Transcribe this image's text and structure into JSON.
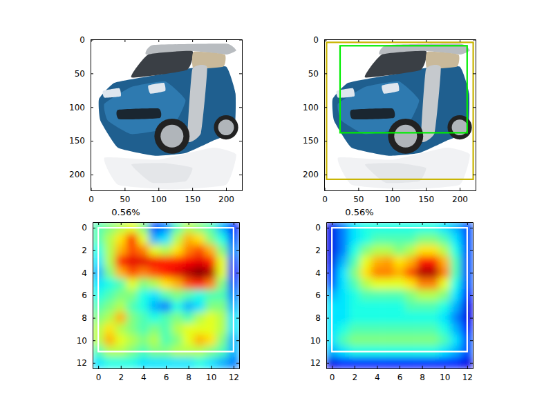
{
  "chart_data": [
    {
      "type": "image",
      "xlim": [
        -0.5,
        223.5
      ],
      "ylim": [
        223.5,
        -0.5
      ],
      "xticks": [
        0,
        50,
        100,
        150,
        200
      ],
      "yticks": [
        0,
        50,
        100,
        150,
        200
      ]
    },
    {
      "type": "image",
      "xlim": [
        -0.5,
        223.5
      ],
      "ylim": [
        223.5,
        -0.5
      ],
      "xticks": [
        0,
        50,
        100,
        150,
        200
      ],
      "yticks": [
        0,
        50,
        100,
        150,
        200
      ],
      "boxes": [
        {
          "x": [
            23,
            211
          ],
          "y": [
            9,
            138
          ],
          "color": "#00ee00"
        },
        {
          "x": [
            3,
            220
          ],
          "y": [
            4,
            207
          ],
          "color": "#c8b400"
        }
      ]
    },
    {
      "type": "heatmap",
      "title": "0.56%",
      "xlim": [
        -0.5,
        12.5
      ],
      "ylim": [
        12.5,
        -0.5
      ],
      "xticks": [
        0,
        2,
        4,
        6,
        8,
        10,
        12
      ],
      "yticks": [
        0,
        2,
        4,
        6,
        8,
        10,
        12
      ],
      "color_range": [
        0,
        1
      ],
      "cells": [
        [
          0.45,
          0.5,
          0.55,
          0.6,
          0.5,
          0.2,
          0.25,
          0.45,
          0.55,
          0.5,
          0.45,
          0.3,
          0.15
        ],
        [
          0.45,
          0.55,
          0.65,
          0.85,
          0.6,
          0.3,
          0.35,
          0.55,
          0.7,
          0.65,
          0.5,
          0.4,
          0.2
        ],
        [
          0.4,
          0.55,
          0.7,
          0.8,
          0.75,
          0.6,
          0.55,
          0.65,
          0.75,
          0.8,
          0.7,
          0.5,
          0.25
        ],
        [
          0.35,
          0.55,
          0.85,
          0.9,
          0.9,
          0.88,
          0.85,
          0.85,
          0.88,
          0.9,
          0.85,
          0.6,
          0.2
        ],
        [
          0.3,
          0.5,
          0.7,
          0.8,
          0.75,
          0.8,
          0.85,
          0.9,
          0.95,
          1.0,
          0.95,
          0.6,
          0.15
        ],
        [
          0.35,
          0.4,
          0.45,
          0.6,
          0.5,
          0.55,
          0.65,
          0.7,
          0.8,
          0.85,
          0.75,
          0.5,
          0.2
        ],
        [
          0.4,
          0.45,
          0.5,
          0.5,
          0.4,
          0.35,
          0.45,
          0.5,
          0.45,
          0.4,
          0.45,
          0.45,
          0.25
        ],
        [
          0.45,
          0.5,
          0.55,
          0.45,
          0.4,
          0.3,
          0.25,
          0.4,
          0.3,
          0.35,
          0.5,
          0.5,
          0.3
        ],
        [
          0.5,
          0.55,
          0.7,
          0.5,
          0.45,
          0.4,
          0.45,
          0.5,
          0.45,
          0.55,
          0.6,
          0.55,
          0.35
        ],
        [
          0.55,
          0.65,
          0.55,
          0.5,
          0.45,
          0.5,
          0.45,
          0.55,
          0.6,
          0.6,
          0.6,
          0.55,
          0.35
        ],
        [
          0.55,
          0.7,
          0.6,
          0.55,
          0.5,
          0.55,
          0.45,
          0.5,
          0.6,
          0.7,
          0.65,
          0.5,
          0.3
        ],
        [
          0.45,
          0.55,
          0.55,
          0.5,
          0.45,
          0.5,
          0.5,
          0.55,
          0.55,
          0.55,
          0.5,
          0.45,
          0.3
        ],
        [
          0.35,
          0.4,
          0.4,
          0.4,
          0.35,
          0.35,
          0.35,
          0.35,
          0.35,
          0.4,
          0.35,
          0.3,
          0.25
        ]
      ],
      "boxes": [
        {
          "x": [
            0,
            12
          ],
          "y": [
            0,
            11
          ],
          "color": "#ffffff"
        }
      ]
    },
    {
      "type": "heatmap",
      "title": "0.56%",
      "xlim": [
        -0.5,
        12.5
      ],
      "ylim": [
        12.5,
        -0.5
      ],
      "xticks": [
        0,
        2,
        4,
        6,
        8,
        10,
        12
      ],
      "yticks": [
        0,
        2,
        4,
        6,
        8,
        10,
        12
      ],
      "color_range": [
        0,
        1
      ],
      "cells": [
        [
          0.1,
          0.25,
          0.35,
          0.4,
          0.4,
          0.4,
          0.4,
          0.4,
          0.4,
          0.4,
          0.35,
          0.3,
          0.2
        ],
        [
          0.1,
          0.25,
          0.35,
          0.4,
          0.45,
          0.45,
          0.45,
          0.45,
          0.5,
          0.5,
          0.45,
          0.35,
          0.2
        ],
        [
          0.1,
          0.25,
          0.4,
          0.5,
          0.55,
          0.55,
          0.5,
          0.55,
          0.65,
          0.65,
          0.55,
          0.4,
          0.2
        ],
        [
          0.1,
          0.3,
          0.45,
          0.6,
          0.7,
          0.72,
          0.65,
          0.7,
          0.85,
          0.85,
          0.7,
          0.45,
          0.2
        ],
        [
          0.15,
          0.35,
          0.5,
          0.65,
          0.75,
          0.75,
          0.7,
          0.8,
          0.95,
          0.95,
          0.75,
          0.45,
          0.2
        ],
        [
          0.2,
          0.35,
          0.45,
          0.55,
          0.6,
          0.6,
          0.6,
          0.65,
          0.75,
          0.75,
          0.6,
          0.4,
          0.2
        ],
        [
          0.3,
          0.35,
          0.4,
          0.45,
          0.45,
          0.45,
          0.45,
          0.5,
          0.55,
          0.55,
          0.5,
          0.35,
          0.15
        ],
        [
          0.35,
          0.35,
          0.4,
          0.4,
          0.4,
          0.4,
          0.4,
          0.45,
          0.45,
          0.45,
          0.4,
          0.3,
          0.1
        ],
        [
          0.35,
          0.35,
          0.4,
          0.4,
          0.4,
          0.4,
          0.4,
          0.4,
          0.4,
          0.4,
          0.35,
          0.25,
          0.1
        ],
        [
          0.35,
          0.4,
          0.45,
          0.45,
          0.45,
          0.45,
          0.45,
          0.45,
          0.45,
          0.45,
          0.4,
          0.3,
          0.15
        ],
        [
          0.35,
          0.45,
          0.5,
          0.5,
          0.5,
          0.5,
          0.5,
          0.5,
          0.5,
          0.5,
          0.45,
          0.35,
          0.2
        ],
        [
          0.3,
          0.35,
          0.4,
          0.4,
          0.4,
          0.4,
          0.4,
          0.4,
          0.4,
          0.4,
          0.35,
          0.3,
          0.2
        ],
        [
          0.1,
          0.15,
          0.15,
          0.15,
          0.15,
          0.15,
          0.15,
          0.15,
          0.15,
          0.15,
          0.15,
          0.15,
          0.1
        ]
      ],
      "boxes": [
        {
          "x": [
            0,
            12
          ],
          "y": [
            0,
            11
          ],
          "color": "#ffffff"
        }
      ]
    }
  ]
}
